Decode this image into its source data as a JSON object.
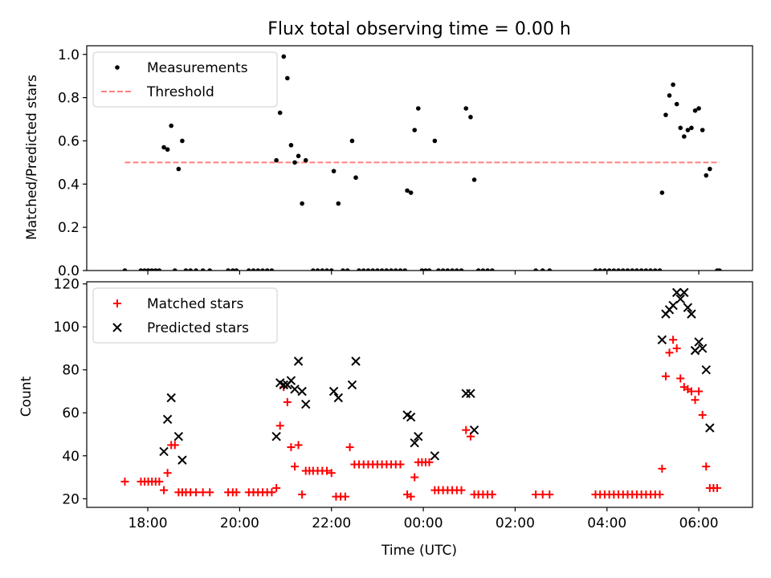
{
  "chart_data": [
    {
      "type": "scatter",
      "title": "Flux total observing time = 0.00 h",
      "xlabel": "",
      "ylabel": "Matched/Predicted stars",
      "xlim": [
        16.67,
        31.17
      ],
      "ylim": [
        0,
        1.04
      ],
      "yticks": [
        "0.0",
        "0.2",
        "0.4",
        "0.6",
        "0.8",
        "1.0"
      ],
      "legend": {
        "placement": "top-left",
        "entries": [
          "Measurements",
          "Threshold"
        ]
      },
      "threshold": {
        "name": "Threshold",
        "value": 0.5,
        "x_range": [
          17.5,
          30.45
        ],
        "color": "#ff7f7f"
      },
      "series": [
        {
          "name": "Measurements",
          "color": "#000000",
          "points": [
            [
              17.5,
              0
            ],
            [
              17.85,
              0
            ],
            [
              17.93,
              0
            ],
            [
              18.01,
              0
            ],
            [
              18.09,
              0
            ],
            [
              18.17,
              0
            ],
            [
              18.25,
              0
            ],
            [
              18.35,
              0.57
            ],
            [
              18.43,
              0.56
            ],
            [
              18.51,
              0.67
            ],
            [
              18.59,
              0
            ],
            [
              18.67,
              0.47
            ],
            [
              18.75,
              0.6
            ],
            [
              18.83,
              0
            ],
            [
              18.93,
              0
            ],
            [
              19.05,
              0
            ],
            [
              19.2,
              0
            ],
            [
              19.35,
              0
            ],
            [
              19.75,
              0
            ],
            [
              19.85,
              0
            ],
            [
              19.93,
              0
            ],
            [
              20.2,
              0
            ],
            [
              20.3,
              0
            ],
            [
              20.4,
              0
            ],
            [
              20.5,
              0
            ],
            [
              20.6,
              0
            ],
            [
              20.7,
              0
            ],
            [
              20.8,
              0.51
            ],
            [
              20.88,
              0.73
            ],
            [
              20.96,
              0.99
            ],
            [
              21.04,
              0.89
            ],
            [
              21.12,
              0.58
            ],
            [
              21.2,
              0.5
            ],
            [
              21.28,
              0.53
            ],
            [
              21.36,
              0.31
            ],
            [
              21.44,
              0.51
            ],
            [
              21.6,
              0
            ],
            [
              21.7,
              0
            ],
            [
              21.8,
              0
            ],
            [
              21.9,
              0
            ],
            [
              22.0,
              0
            ],
            [
              22.05,
              0.46
            ],
            [
              22.15,
              0.31
            ],
            [
              22.25,
              0
            ],
            [
              22.35,
              0
            ],
            [
              22.45,
              0.6
            ],
            [
              22.53,
              0.43
            ],
            [
              22.6,
              0
            ],
            [
              22.7,
              0
            ],
            [
              22.8,
              0
            ],
            [
              22.9,
              0
            ],
            [
              23.0,
              0
            ],
            [
              23.1,
              0
            ],
            [
              23.2,
              0
            ],
            [
              23.3,
              0
            ],
            [
              23.4,
              0
            ],
            [
              23.5,
              0
            ],
            [
              23.6,
              0
            ],
            [
              23.65,
              0.37
            ],
            [
              23.73,
              0.36
            ],
            [
              23.81,
              0.65
            ],
            [
              23.89,
              0.75
            ],
            [
              23.97,
              0
            ],
            [
              24.05,
              0
            ],
            [
              24.13,
              0
            ],
            [
              24.25,
              0.6
            ],
            [
              24.33,
              0
            ],
            [
              24.43,
              0
            ],
            [
              24.53,
              0
            ],
            [
              24.63,
              0
            ],
            [
              24.73,
              0
            ],
            [
              24.83,
              0
            ],
            [
              24.93,
              0.75
            ],
            [
              25.03,
              0.71
            ],
            [
              25.11,
              0.42
            ],
            [
              25.2,
              0
            ],
            [
              25.3,
              0
            ],
            [
              25.4,
              0
            ],
            [
              25.5,
              0
            ],
            [
              26.45,
              0
            ],
            [
              26.6,
              0
            ],
            [
              26.75,
              0
            ],
            [
              27.75,
              0
            ],
            [
              27.85,
              0
            ],
            [
              27.95,
              0
            ],
            [
              28.05,
              0
            ],
            [
              28.15,
              0
            ],
            [
              28.25,
              0
            ],
            [
              28.35,
              0
            ],
            [
              28.45,
              0
            ],
            [
              28.55,
              0
            ],
            [
              28.65,
              0
            ],
            [
              28.75,
              0
            ],
            [
              28.85,
              0
            ],
            [
              28.95,
              0
            ],
            [
              29.05,
              0
            ],
            [
              29.15,
              0
            ],
            [
              29.2,
              0.36
            ],
            [
              29.28,
              0.72
            ],
            [
              29.36,
              0.81
            ],
            [
              29.44,
              0.86
            ],
            [
              29.52,
              0.77
            ],
            [
              29.6,
              0.66
            ],
            [
              29.68,
              0.62
            ],
            [
              29.76,
              0.65
            ],
            [
              29.84,
              0.66
            ],
            [
              29.92,
              0.74
            ],
            [
              30.0,
              0.75
            ],
            [
              30.08,
              0.65
            ],
            [
              30.16,
              0.44
            ],
            [
              30.24,
              0.47
            ],
            [
              30.4,
              0
            ],
            [
              30.45,
              0
            ]
          ]
        }
      ]
    },
    {
      "type": "scatter",
      "title": "",
      "xlabel": "Time (UTC)",
      "ylabel": "Count",
      "xlim": [
        16.67,
        31.17
      ],
      "ylim": [
        16,
        121
      ],
      "yticks": [
        "20",
        "40",
        "60",
        "80",
        "100",
        "120"
      ],
      "xticks": [
        {
          "value": 18,
          "label": "18:00"
        },
        {
          "value": 20,
          "label": "20:00"
        },
        {
          "value": 22,
          "label": "22:00"
        },
        {
          "value": 24,
          "label": "00:00"
        },
        {
          "value": 26,
          "label": "02:00"
        },
        {
          "value": 28,
          "label": "04:00"
        },
        {
          "value": 30,
          "label": "06:00"
        }
      ],
      "legend": {
        "placement": "top-left",
        "entries": [
          "Matched stars",
          "Predicted stars"
        ]
      },
      "series": [
        {
          "name": "Matched stars",
          "color": "#ff0000",
          "marker": "plus",
          "points": [
            [
              17.5,
              28
            ],
            [
              17.85,
              28
            ],
            [
              17.93,
              28
            ],
            [
              18.01,
              28
            ],
            [
              18.09,
              28
            ],
            [
              18.17,
              28
            ],
            [
              18.25,
              28
            ],
            [
              18.35,
              24
            ],
            [
              18.43,
              32
            ],
            [
              18.51,
              45
            ],
            [
              18.59,
              45
            ],
            [
              18.67,
              23
            ],
            [
              18.75,
              23
            ],
            [
              18.83,
              23
            ],
            [
              18.93,
              23
            ],
            [
              19.05,
              23
            ],
            [
              19.2,
              23
            ],
            [
              19.35,
              23
            ],
            [
              19.75,
              23
            ],
            [
              19.85,
              23
            ],
            [
              19.93,
              23
            ],
            [
              20.2,
              23
            ],
            [
              20.3,
              23
            ],
            [
              20.4,
              23
            ],
            [
              20.5,
              23
            ],
            [
              20.6,
              23
            ],
            [
              20.7,
              23
            ],
            [
              20.8,
              25
            ],
            [
              20.88,
              54
            ],
            [
              20.96,
              72
            ],
            [
              21.04,
              65
            ],
            [
              21.12,
              44
            ],
            [
              21.2,
              35
            ],
            [
              21.28,
              45
            ],
            [
              21.36,
              22
            ],
            [
              21.44,
              33
            ],
            [
              21.52,
              33
            ],
            [
              21.6,
              33
            ],
            [
              21.7,
              33
            ],
            [
              21.8,
              33
            ],
            [
              21.9,
              33
            ],
            [
              22.0,
              32
            ],
            [
              22.1,
              21
            ],
            [
              22.2,
              21
            ],
            [
              22.3,
              21
            ],
            [
              22.4,
              44
            ],
            [
              22.5,
              36
            ],
            [
              22.6,
              36
            ],
            [
              22.7,
              36
            ],
            [
              22.8,
              36
            ],
            [
              22.9,
              36
            ],
            [
              23.0,
              36
            ],
            [
              23.1,
              36
            ],
            [
              23.2,
              36
            ],
            [
              23.3,
              36
            ],
            [
              23.4,
              36
            ],
            [
              23.5,
              36
            ],
            [
              23.65,
              22
            ],
            [
              23.73,
              21
            ],
            [
              23.81,
              30
            ],
            [
              23.89,
              37
            ],
            [
              23.97,
              37
            ],
            [
              24.05,
              37
            ],
            [
              24.13,
              37
            ],
            [
              24.25,
              24
            ],
            [
              24.33,
              24
            ],
            [
              24.43,
              24
            ],
            [
              24.53,
              24
            ],
            [
              24.63,
              24
            ],
            [
              24.73,
              24
            ],
            [
              24.83,
              24
            ],
            [
              24.93,
              52
            ],
            [
              25.03,
              49
            ],
            [
              25.11,
              22
            ],
            [
              25.2,
              22
            ],
            [
              25.3,
              22
            ],
            [
              25.4,
              22
            ],
            [
              25.5,
              22
            ],
            [
              26.45,
              22
            ],
            [
              26.6,
              22
            ],
            [
              26.75,
              22
            ],
            [
              27.75,
              22
            ],
            [
              27.85,
              22
            ],
            [
              27.95,
              22
            ],
            [
              28.05,
              22
            ],
            [
              28.15,
              22
            ],
            [
              28.25,
              22
            ],
            [
              28.35,
              22
            ],
            [
              28.45,
              22
            ],
            [
              28.55,
              22
            ],
            [
              28.65,
              22
            ],
            [
              28.75,
              22
            ],
            [
              28.85,
              22
            ],
            [
              28.95,
              22
            ],
            [
              29.05,
              22
            ],
            [
              29.15,
              22
            ],
            [
              29.2,
              34
            ],
            [
              29.28,
              77
            ],
            [
              29.36,
              88
            ],
            [
              29.44,
              94
            ],
            [
              29.52,
              90
            ],
            [
              29.6,
              76
            ],
            [
              29.68,
              72
            ],
            [
              29.76,
              71
            ],
            [
              29.84,
              70
            ],
            [
              29.92,
              66
            ],
            [
              30.0,
              70
            ],
            [
              30.08,
              59
            ],
            [
              30.16,
              35
            ],
            [
              30.24,
              25
            ],
            [
              30.32,
              25
            ],
            [
              30.4,
              25
            ]
          ]
        },
        {
          "name": "Predicted stars",
          "color": "#000000",
          "marker": "x",
          "points": [
            [
              18.35,
              42
            ],
            [
              18.43,
              57
            ],
            [
              18.51,
              67
            ],
            [
              18.67,
              49
            ],
            [
              18.75,
              38
            ],
            [
              20.8,
              49
            ],
            [
              20.88,
              74
            ],
            [
              20.96,
              73
            ],
            [
              21.04,
              73
            ],
            [
              21.12,
              75
            ],
            [
              21.2,
              71
            ],
            [
              21.28,
              84
            ],
            [
              21.36,
              70
            ],
            [
              21.44,
              64
            ],
            [
              22.05,
              70
            ],
            [
              22.15,
              67
            ],
            [
              22.45,
              73
            ],
            [
              22.53,
              84
            ],
            [
              23.65,
              59
            ],
            [
              23.73,
              58
            ],
            [
              23.81,
              46
            ],
            [
              23.89,
              49
            ],
            [
              24.25,
              40
            ],
            [
              24.93,
              69
            ],
            [
              25.03,
              69
            ],
            [
              25.11,
              52
            ],
            [
              29.2,
              94
            ],
            [
              29.28,
              106
            ],
            [
              29.36,
              108
            ],
            [
              29.44,
              110
            ],
            [
              29.52,
              116
            ],
            [
              29.6,
              113
            ],
            [
              29.68,
              116
            ],
            [
              29.76,
              109
            ],
            [
              29.84,
              106
            ],
            [
              29.92,
              89
            ],
            [
              30.0,
              93
            ],
            [
              30.08,
              90
            ],
            [
              30.16,
              80
            ],
            [
              30.24,
              53
            ]
          ]
        }
      ]
    }
  ]
}
